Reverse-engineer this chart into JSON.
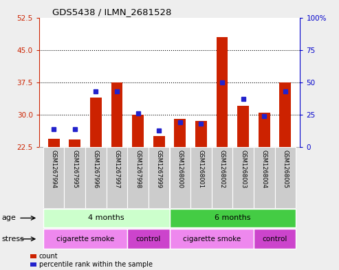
{
  "title": "GDS5438 / ILMN_2681528",
  "samples": [
    "GSM1267994",
    "GSM1267995",
    "GSM1267996",
    "GSM1267997",
    "GSM1267998",
    "GSM1267999",
    "GSM1268000",
    "GSM1268001",
    "GSM1268002",
    "GSM1268003",
    "GSM1268004",
    "GSM1268005"
  ],
  "counts": [
    24.5,
    24.3,
    34.0,
    37.5,
    30.0,
    25.0,
    29.0,
    28.5,
    48.0,
    32.0,
    30.5,
    37.5
  ],
  "percentiles": [
    14,
    14,
    43,
    43,
    26,
    13,
    19,
    18,
    50,
    37,
    24,
    43
  ],
  "ymin": 22.5,
  "ymax": 52.5,
  "yticks": [
    22.5,
    30.0,
    37.5,
    45.0,
    52.5
  ],
  "yright_ticks": [
    0,
    25,
    50,
    75,
    100
  ],
  "bar_color": "#cc2200",
  "marker_color": "#2222cc",
  "bar_width": 0.55,
  "age_groups": [
    {
      "label": "4 months",
      "start": 0,
      "end": 6,
      "color": "#ccffcc"
    },
    {
      "label": "6 months",
      "start": 6,
      "end": 12,
      "color": "#44cc44"
    }
  ],
  "stress_groups": [
    {
      "label": "cigarette smoke",
      "start": 0,
      "end": 4,
      "color": "#ee88ee"
    },
    {
      "label": "control",
      "start": 4,
      "end": 6,
      "color": "#cc44cc"
    },
    {
      "label": "cigarette smoke",
      "start": 6,
      "end": 10,
      "color": "#ee88ee"
    },
    {
      "label": "control",
      "start": 10,
      "end": 12,
      "color": "#cc44cc"
    }
  ],
  "bg_color": "#eeeeee",
  "plot_bg": "#ffffff",
  "grid_color": "#000000",
  "title_color": "#000000",
  "left_axis_color": "#cc2200",
  "right_axis_color": "#0000cc",
  "sample_box_color": "#cccccc"
}
